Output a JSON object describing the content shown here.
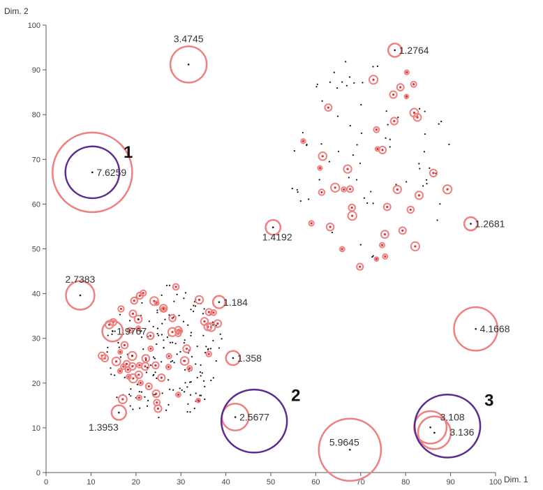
{
  "chart_data": {
    "type": "scatter",
    "xlabel": "Dim. 1",
    "ylabel": "Dim. 2",
    "xlim": [
      0,
      100
    ],
    "ylim": [
      0,
      100
    ],
    "x_ticks": [
      0,
      10,
      20,
      30,
      40,
      50,
      60,
      70,
      80,
      90,
      100
    ],
    "y_ticks": [
      0,
      10,
      20,
      30,
      40,
      50,
      60,
      70,
      80,
      90,
      100
    ],
    "grid": false,
    "colors": {
      "point": "#111111",
      "outlier_dot": "#e03030",
      "circle": "#f08080",
      "highlight": "#5b2c91"
    },
    "labeled_outliers": [
      {
        "x": 10.3,
        "y": 67.1,
        "label": "7.6259"
      },
      {
        "x": 31.7,
        "y": 91.2,
        "label": "3.4745"
      },
      {
        "x": 77.6,
        "y": 94.4,
        "label": "1.2764"
      },
      {
        "x": 50.5,
        "y": 54.8,
        "label": "1.4192"
      },
      {
        "x": 94.5,
        "y": 55.6,
        "label": "1.2681"
      },
      {
        "x": 7.6,
        "y": 39.6,
        "label": "2.7383"
      },
      {
        "x": 14.8,
        "y": 31.6,
        "label": "1.9767"
      },
      {
        "x": 38.5,
        "y": 38.1,
        "label": "1.184"
      },
      {
        "x": 41.6,
        "y": 25.6,
        "label": "1.358"
      },
      {
        "x": 16.2,
        "y": 13.4,
        "label": "1.3953"
      },
      {
        "x": 42.1,
        "y": 12.4,
        "label": "2.5677"
      },
      {
        "x": 95.6,
        "y": 32.1,
        "label": "4.1668"
      },
      {
        "x": 67.6,
        "y": 5.1,
        "label": "5.9645"
      },
      {
        "x": 85.5,
        "y": 10.1,
        "label": "3.108"
      },
      {
        "x": 86.4,
        "y": 8.9,
        "label": "3.136"
      }
    ],
    "lof_circle_radius_per_unit": 8.8,
    "highlighted_groups": [
      {
        "label": "1",
        "x": 10.3,
        "y": 67.1,
        "radius": 6.0
      },
      {
        "label": "2",
        "x": 46.3,
        "y": 11.5,
        "radius": 7.3
      },
      {
        "label": "3",
        "x": 89.3,
        "y": 10.4,
        "radius": 7.3
      }
    ],
    "clusters": [
      {
        "cx": 72,
        "cy": 69,
        "rx": 18,
        "ry": 24,
        "count": 110,
        "outlier_fraction": 0.32,
        "seed": 17
      },
      {
        "cx": 26,
        "cy": 27,
        "rx": 14,
        "ry": 15,
        "count": 230,
        "outlier_fraction": 0.3,
        "seed": 91
      }
    ]
  }
}
